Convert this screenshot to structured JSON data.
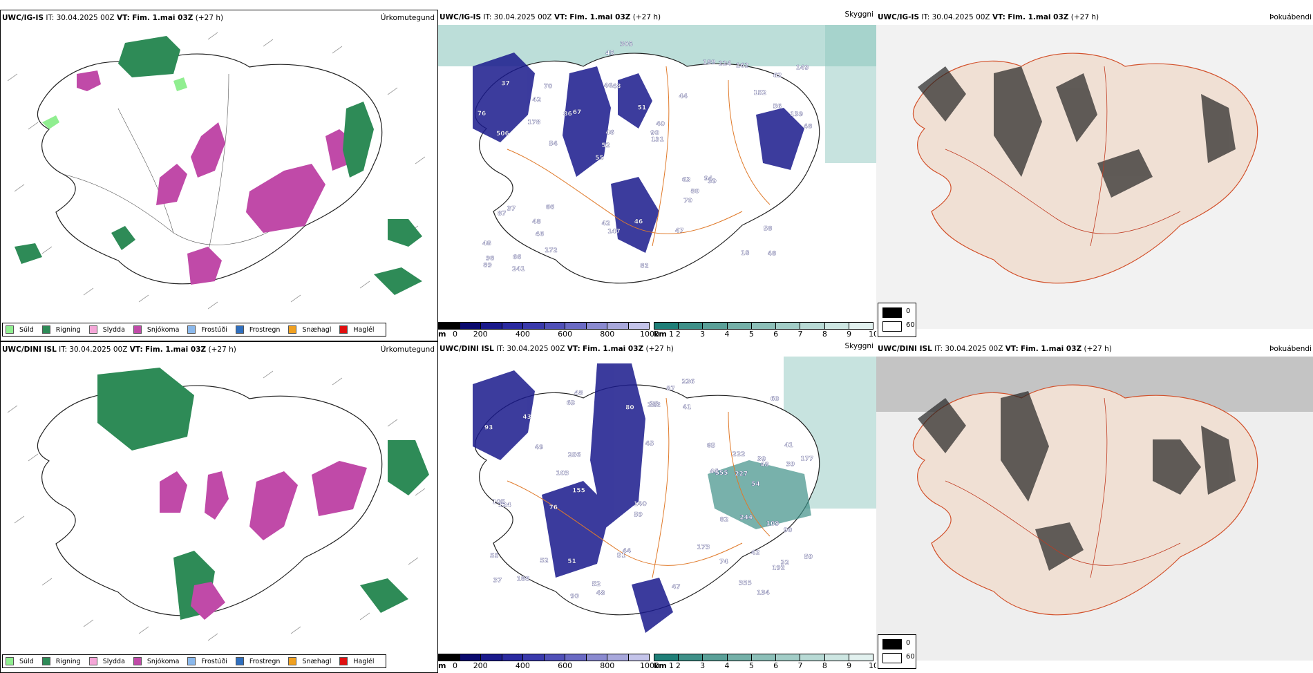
{
  "panels": [
    {
      "model": "UWC/IG-IS",
      "it_label": "IT:",
      "it": "30.04.2025 00Z",
      "vt_label": "VT:",
      "vt": "Fim. 1.mai 03Z",
      "lead": "(+27 h)",
      "title": "Úrkomutegund"
    },
    {
      "model": "UWC/IG-IS",
      "it_label": "IT:",
      "it": "30.04.2025 00Z",
      "vt_label": "VT:",
      "vt": "Fim. 1.mai 03Z",
      "lead": "(+27 h)",
      "title": "Skyggni"
    },
    {
      "model": "UWC/IG-IS",
      "it_label": "IT:",
      "it": "30.04.2025 00Z",
      "vt_label": "VT:",
      "vt": "Fim. 1.mai 03Z",
      "lead": "(+27 h)",
      "title": "Þokuábendi"
    },
    {
      "model": "UWC/DINI ISL",
      "it_label": "IT:",
      "it": "30.04.2025 00Z",
      "vt_label": "VT:",
      "vt": "Fim. 1.mai 03Z",
      "lead": "(+27 h)",
      "title": "Úrkomutegund"
    },
    {
      "model": "UWC/DINI ISL",
      "it_label": "IT:",
      "it": "30.04.2025 00Z",
      "vt_label": "VT:",
      "vt": "Fim. 1.mai 03Z",
      "lead": "(+27 h)",
      "title": "Skyggni"
    },
    {
      "model": "UWC/DINI ISL",
      "it_label": "IT:",
      "it": "30.04.2025 00Z",
      "vt_label": "VT:",
      "vt": "Fim. 1.mai 03Z",
      "lead": "(+27 h)",
      "title": "Þokuábendi"
    }
  ],
  "precip_legend": [
    {
      "label": "Súld",
      "color": "#90ee90"
    },
    {
      "label": "Rigning",
      "color": "#2e8b57"
    },
    {
      "label": "Slydda",
      "color": "#f4a6d7"
    },
    {
      "label": "Snjókoma",
      "color": "#c04aa8"
    },
    {
      "label": "Frostúði",
      "color": "#8ab8ec"
    },
    {
      "label": "Frostregn",
      "color": "#2f6fbf"
    },
    {
      "label": "Snæhagl",
      "color": "#f0a020"
    },
    {
      "label": "Haglél",
      "color": "#e01010"
    }
  ],
  "visibility_legend": {
    "m_unit": "m",
    "m_ticks": [
      "0",
      "200",
      "400",
      "600",
      "800",
      "1000"
    ],
    "m_colors": [
      "#000000",
      "#0a0a6e",
      "#1a1a8c",
      "#2a2aa0",
      "#3a3aac",
      "#5050b8",
      "#6a6ac4",
      "#8a8ad0",
      "#a8a8dc",
      "#c4c4ea"
    ],
    "km_unit": "km",
    "km_ticks": [
      "1",
      "2",
      "3",
      "4",
      "5",
      "6",
      "7",
      "8",
      "9",
      "10"
    ],
    "km_colors": [
      "#1f7f78",
      "#3e9088",
      "#5aa098",
      "#74b0a8",
      "#8cbfb8",
      "#a2cdc7",
      "#b8dad5",
      "#cde6e2",
      "#e2f1ef"
    ]
  },
  "fog_legend": [
    {
      "label": "0",
      "color": "#000000"
    },
    {
      "label": "60",
      "color": "#ffffff"
    }
  ],
  "vis_labels_top": [
    "48",
    "506",
    "62",
    "55",
    "44",
    "66",
    "46",
    "51",
    "37",
    "67",
    "48",
    "46",
    "48",
    "40",
    "39",
    "37",
    "45",
    "48",
    "63",
    "56",
    "52",
    "42",
    "46",
    "70",
    "189",
    "66",
    "18",
    "58",
    "94",
    "82",
    "86",
    "178",
    "70",
    "172",
    "139",
    "90",
    "98",
    "147",
    "131",
    "87",
    "152",
    "149",
    "80",
    "47",
    "48",
    "241",
    "89",
    "46",
    "162",
    "305",
    "54",
    "76",
    "42",
    "224"
  ],
  "vis_labels_bottom": [
    "42",
    "41",
    "32",
    "45",
    "37",
    "48",
    "39",
    "51",
    "60",
    "49",
    "39",
    "93",
    "54",
    "48",
    "55",
    "43",
    "192",
    "63",
    "44",
    "48",
    "105",
    "124",
    "47",
    "46",
    "52",
    "51",
    "87",
    "41",
    "65",
    "59",
    "76",
    "74",
    "90",
    "140",
    "109",
    "355",
    "555",
    "80",
    "134",
    "155",
    "244",
    "227",
    "222",
    "103",
    "90",
    "82",
    "188",
    "236",
    "256",
    "222",
    "52",
    "59",
    "28",
    "177",
    "173"
  ]
}
